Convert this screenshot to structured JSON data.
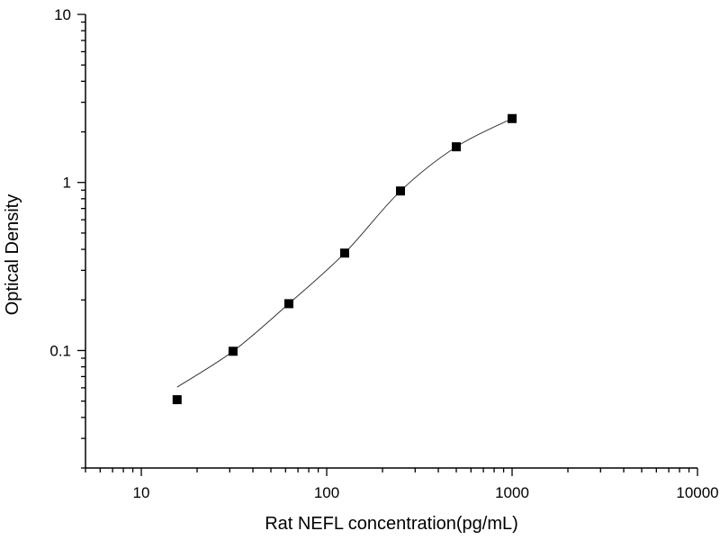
{
  "chart_data": {
    "type": "scatter",
    "title": "",
    "xlabel": "Rat NEFL concentration(pg/mL)",
    "ylabel": "Optical Density",
    "xscale": "log",
    "yscale": "log",
    "xlim": [
      5,
      10000
    ],
    "ylim": [
      0.02,
      10
    ],
    "x_ticks": [
      "10",
      "100",
      "1000",
      "10000"
    ],
    "y_ticks": [
      "0.1",
      "1",
      "10"
    ],
    "grid": false,
    "legend": "none",
    "series": [
      {
        "x": [
          15.6,
          31.25,
          62.5,
          125,
          250,
          500,
          1000
        ],
        "y": [
          0.051,
          0.099,
          0.19,
          0.38,
          0.89,
          1.63,
          2.4
        ],
        "marker": "square",
        "color": "#000000",
        "fit_curve": true
      }
    ]
  }
}
